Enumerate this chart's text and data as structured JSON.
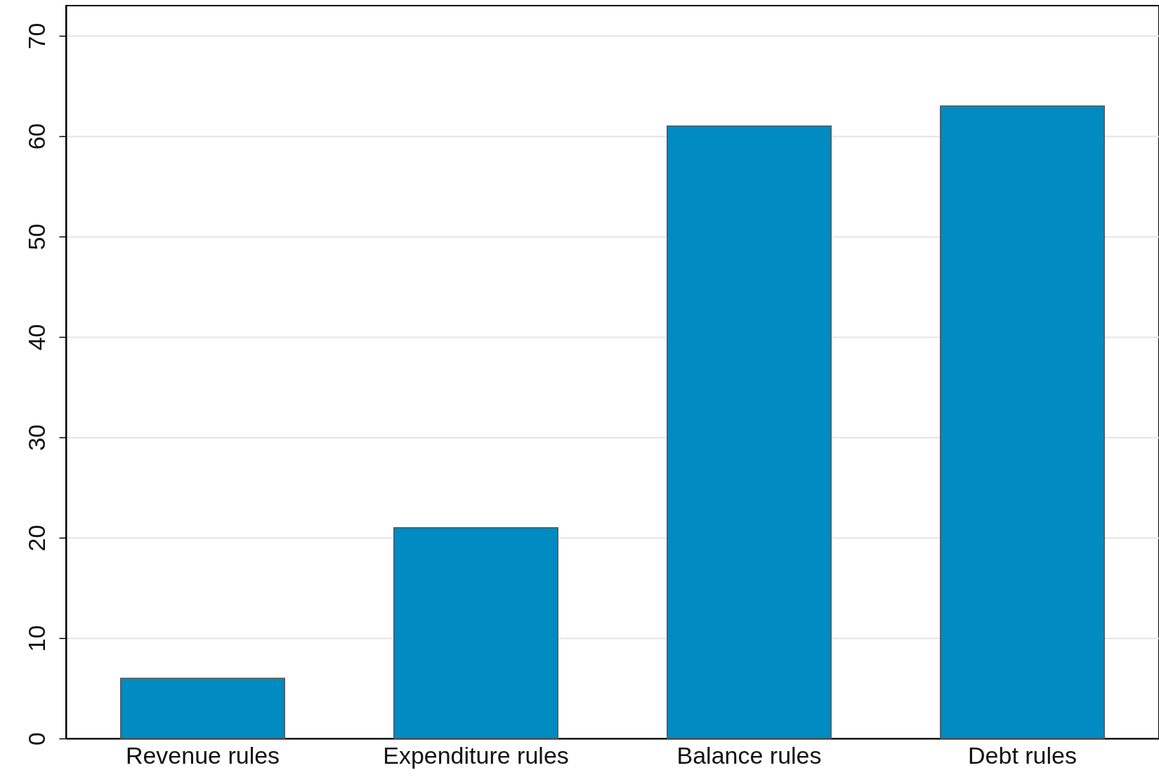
{
  "chart_data": {
    "type": "bar",
    "categories": [
      "Revenue rules",
      "Expenditure rules",
      "Balance rules",
      "Debt rules"
    ],
    "values": [
      6,
      21,
      61,
      63
    ],
    "color": "#008bc2",
    "ylim": [
      0,
      73
    ],
    "yticks": [
      0,
      10,
      20,
      30,
      40,
      50,
      60,
      70
    ],
    "grid": "y"
  }
}
